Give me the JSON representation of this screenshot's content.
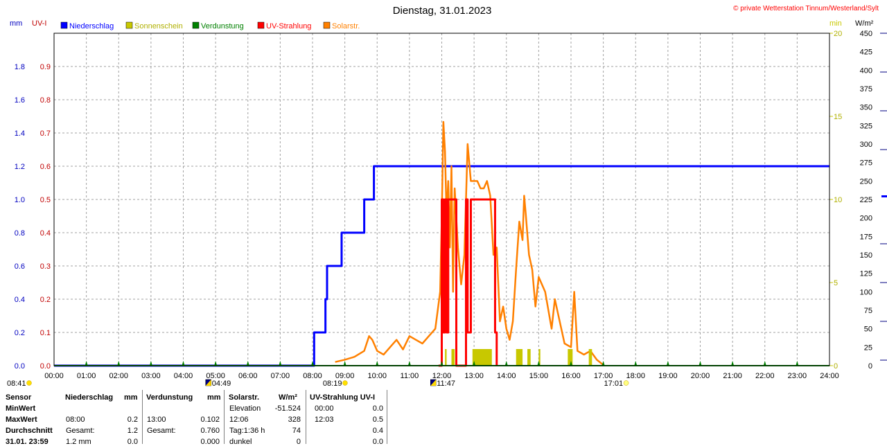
{
  "title": "Dienstag, 31.01.2023",
  "copyright": "© private Wetterstation Tinnum/Westerland/Sylt",
  "legend": [
    {
      "label": "Niederschlag",
      "color": "#0000ff"
    },
    {
      "label": "Sonnenschein",
      "color": "#c8c800"
    },
    {
      "label": "Verdunstung",
      "color": "#008000"
    },
    {
      "label": "UV-Strahlung",
      "color": "#ff0000"
    },
    {
      "label": "Solarstr.",
      "color": "#ff8000"
    }
  ],
  "axis_units": {
    "mm": "mm",
    "uvi": "UV-I",
    "min": "min",
    "wm2": "W/m²"
  },
  "events": [
    {
      "time": "08:41",
      "hour": 0,
      "icon": "sun-icon"
    },
    {
      "time": "04:49",
      "hour": 4.82,
      "icon": "moon-icon"
    },
    {
      "time": "08:19",
      "hour": 8.32,
      "icon": "sun-icon"
    },
    {
      "time": "11:47",
      "hour": 11.78,
      "icon": "moon-icon"
    },
    {
      "time": "17:01",
      "hour": 17.02,
      "icon": "sunset-icon"
    }
  ],
  "chart_data": {
    "type": "line",
    "x_range": [
      "00:00",
      "24:00"
    ],
    "x_ticks": [
      "00:00",
      "01:00",
      "02:00",
      "03:00",
      "04:00",
      "05:00",
      "06:00",
      "07:00",
      "08:00",
      "09:00",
      "10:00",
      "11:00",
      "12:00",
      "13:00",
      "14:00",
      "15:00",
      "16:00",
      "17:00",
      "18:00",
      "19:00",
      "20:00",
      "21:00",
      "22:00",
      "23:00",
      "24:00"
    ],
    "axes": {
      "mm": {
        "range": [
          0,
          2.0
        ],
        "ticks": [
          "0.0",
          "0.2",
          "0.4",
          "0.6",
          "0.8",
          "1.0",
          "1.2",
          "1.4",
          "1.6",
          "1.8"
        ]
      },
      "uvi": {
        "range": [
          0,
          1.0
        ],
        "ticks": [
          "0.0",
          "0.1",
          "0.2",
          "0.3",
          "0.4",
          "0.5",
          "0.6",
          "0.7",
          "0.8",
          "0.9"
        ]
      },
      "min": {
        "range": [
          0,
          20
        ],
        "ticks": [
          "0",
          "5",
          "10",
          "15",
          "20"
        ]
      },
      "wm2": {
        "range": [
          0,
          450
        ],
        "ticks": [
          "0",
          "25",
          "50",
          "75",
          "100",
          "125",
          "150",
          "175",
          "200",
          "225",
          "250",
          "275",
          "300",
          "325",
          "350",
          "375",
          "400",
          "425",
          "450"
        ]
      }
    },
    "grid": true,
    "series": [
      {
        "name": "Niederschlag",
        "axis": "mm",
        "step": true,
        "x": [
          0,
          8.05,
          8.3,
          8.4,
          8.45,
          8.6,
          8.9,
          9.6,
          9.9,
          24
        ],
        "y": [
          0,
          0.2,
          0.2,
          0.4,
          0.6,
          0.6,
          0.8,
          1.0,
          1.2,
          1.2
        ]
      },
      {
        "name": "Solarstr.",
        "axis": "wm2",
        "x": [
          8.7,
          9.0,
          9.3,
          9.6,
          9.75,
          9.85,
          10.0,
          10.2,
          10.4,
          10.6,
          10.8,
          11.0,
          11.2,
          11.4,
          11.6,
          11.8,
          11.95,
          12.0,
          12.05,
          12.1,
          12.15,
          12.2,
          12.25,
          12.3,
          12.35,
          12.4,
          12.5,
          12.6,
          12.7,
          12.8,
          12.9,
          13.0,
          13.1,
          13.2,
          13.3,
          13.4,
          13.5,
          13.6,
          13.7,
          13.8,
          13.9,
          14.0,
          14.1,
          14.2,
          14.3,
          14.4,
          14.5,
          14.55,
          14.6,
          14.7,
          14.8,
          14.9,
          15.0,
          15.2,
          15.4,
          15.5,
          15.6,
          15.8,
          16.0,
          16.1,
          16.2,
          16.4,
          16.6,
          16.8,
          17.0
        ],
        "y": [
          5,
          8,
          12,
          20,
          40,
          35,
          20,
          15,
          25,
          35,
          22,
          40,
          35,
          30,
          40,
          50,
          100,
          200,
          330,
          290,
          200,
          250,
          160,
          270,
          100,
          240,
          160,
          110,
          150,
          300,
          250,
          250,
          250,
          240,
          240,
          250,
          230,
          150,
          160,
          60,
          80,
          50,
          35,
          60,
          130,
          195,
          170,
          230,
          205,
          150,
          130,
          80,
          120,
          100,
          50,
          90,
          70,
          30,
          25,
          100,
          20,
          15,
          20,
          8,
          1
        ]
      },
      {
        "name": "UV-Strahlung",
        "axis": "uvi",
        "step": true,
        "x": [
          11.9,
          12.0,
          12.05,
          12.1,
          12.15,
          12.2,
          12.4,
          12.45,
          12.7,
          12.75,
          12.8,
          12.9,
          13.6,
          13.65,
          13.7
        ],
        "y": [
          0,
          0.5,
          0.1,
          0.5,
          0.1,
          0.5,
          0.5,
          0,
          0,
          0.5,
          0.1,
          0.5,
          0.5,
          0.1,
          0
        ]
      },
      {
        "name": "Sonnenschein",
        "axis": "min",
        "bars": [
          {
            "x0": 12.1,
            "x1": 12.15,
            "y": 1
          },
          {
            "x0": 12.3,
            "x1": 12.4,
            "y": 1
          },
          {
            "x0": 12.95,
            "x1": 13.55,
            "y": 1
          },
          {
            "x0": 14.3,
            "x1": 14.5,
            "y": 1
          },
          {
            "x0": 14.65,
            "x1": 14.75,
            "y": 1
          },
          {
            "x0": 15.0,
            "x1": 15.05,
            "y": 1
          },
          {
            "x0": 15.9,
            "x1": 16.05,
            "y": 1
          },
          {
            "x0": 16.55,
            "x1": 16.65,
            "y": 1
          }
        ]
      },
      {
        "name": "Verdunstung",
        "axis": "mm",
        "x": [
          0,
          24
        ],
        "y": [
          0,
          0
        ]
      }
    ]
  },
  "stats": {
    "headers": {
      "sensor": "Sensor",
      "niederschlag": "Niederschlag",
      "mm": "mm",
      "verdunstung": "Verdunstung",
      "mm2": "mm",
      "solar": "Solarstr.",
      "wm2": "W/m²",
      "uv": "UV-Strahlung UV-I"
    },
    "rows": [
      {
        "label": "MinWert",
        "n_time": "",
        "n_val": "",
        "v_time": "",
        "v_val": "",
        "s_time": "Elevation",
        "s_val": "-51.524",
        "u_time": "00:00",
        "u_val": "0.0"
      },
      {
        "label": "MaxWert",
        "n_time": "08:00",
        "n_val": "0.2",
        "v_time": "13:00",
        "v_val": "0.102",
        "s_time": "12:06",
        "s_val": "328",
        "u_time": "12:03",
        "u_val": "0.5"
      },
      {
        "label": "Durchschnitt",
        "n_time": "Gesamt:",
        "n_val": "1.2",
        "v_time": "Gesamt:",
        "v_val": "0.760",
        "s_time": "Tag:1:36 h",
        "s_val": "74",
        "u_time": "",
        "u_val": "0.4"
      },
      {
        "label": "31.01. 23:59",
        "n_time": "1.2 mm",
        "n_val": "0.0",
        "v_time": "",
        "v_val": "0.000",
        "s_time": "dunkel",
        "s_val": "0",
        "u_time": "",
        "u_val": "0.0"
      }
    ]
  }
}
